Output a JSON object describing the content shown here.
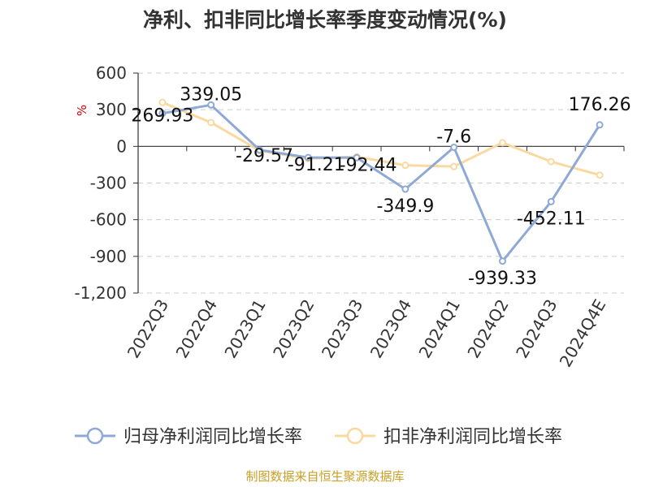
{
  "chart_data": {
    "type": "line",
    "title": "净利、扣非同比增长率季度变动情况(%)",
    "unit_label": "%",
    "categories": [
      "2022Q3",
      "2022Q4",
      "2023Q1",
      "2023Q2",
      "2023Q3",
      "2023Q4",
      "2024Q1",
      "2024Q2",
      "2024Q3",
      "2024Q4E"
    ],
    "ylim": [
      -1200,
      600
    ],
    "yticks": [
      600,
      300,
      0,
      -300,
      -600,
      -900,
      -1200
    ],
    "ytick_labels": [
      "600",
      "300",
      "0",
      "-300",
      "-600",
      "-900",
      "-1,200"
    ],
    "grid": true,
    "legend_position": "bottom",
    "series": [
      {
        "name": "归母净利润同比增长率",
        "color": "#8fa9d6",
        "values": [
          269.93,
          339.05,
          -29.57,
          -91.21,
          -92.44,
          -349.9,
          -7.6,
          -939.33,
          -452.11,
          176.26
        ],
        "labels": [
          "269.93",
          "339.05",
          "-29.57",
          "-91.21",
          "-92.44",
          "-349.9",
          "-7.6",
          "-939.33",
          "-452.11",
          "176.26"
        ]
      },
      {
        "name": "扣非净利润同比增长率",
        "color": "#fad9a0",
        "values": [
          360,
          195,
          -35,
          -100,
          -85,
          -155,
          -165,
          30,
          -125,
          -235
        ]
      }
    ]
  },
  "source": "制图数据来自恒生聚源数据库"
}
